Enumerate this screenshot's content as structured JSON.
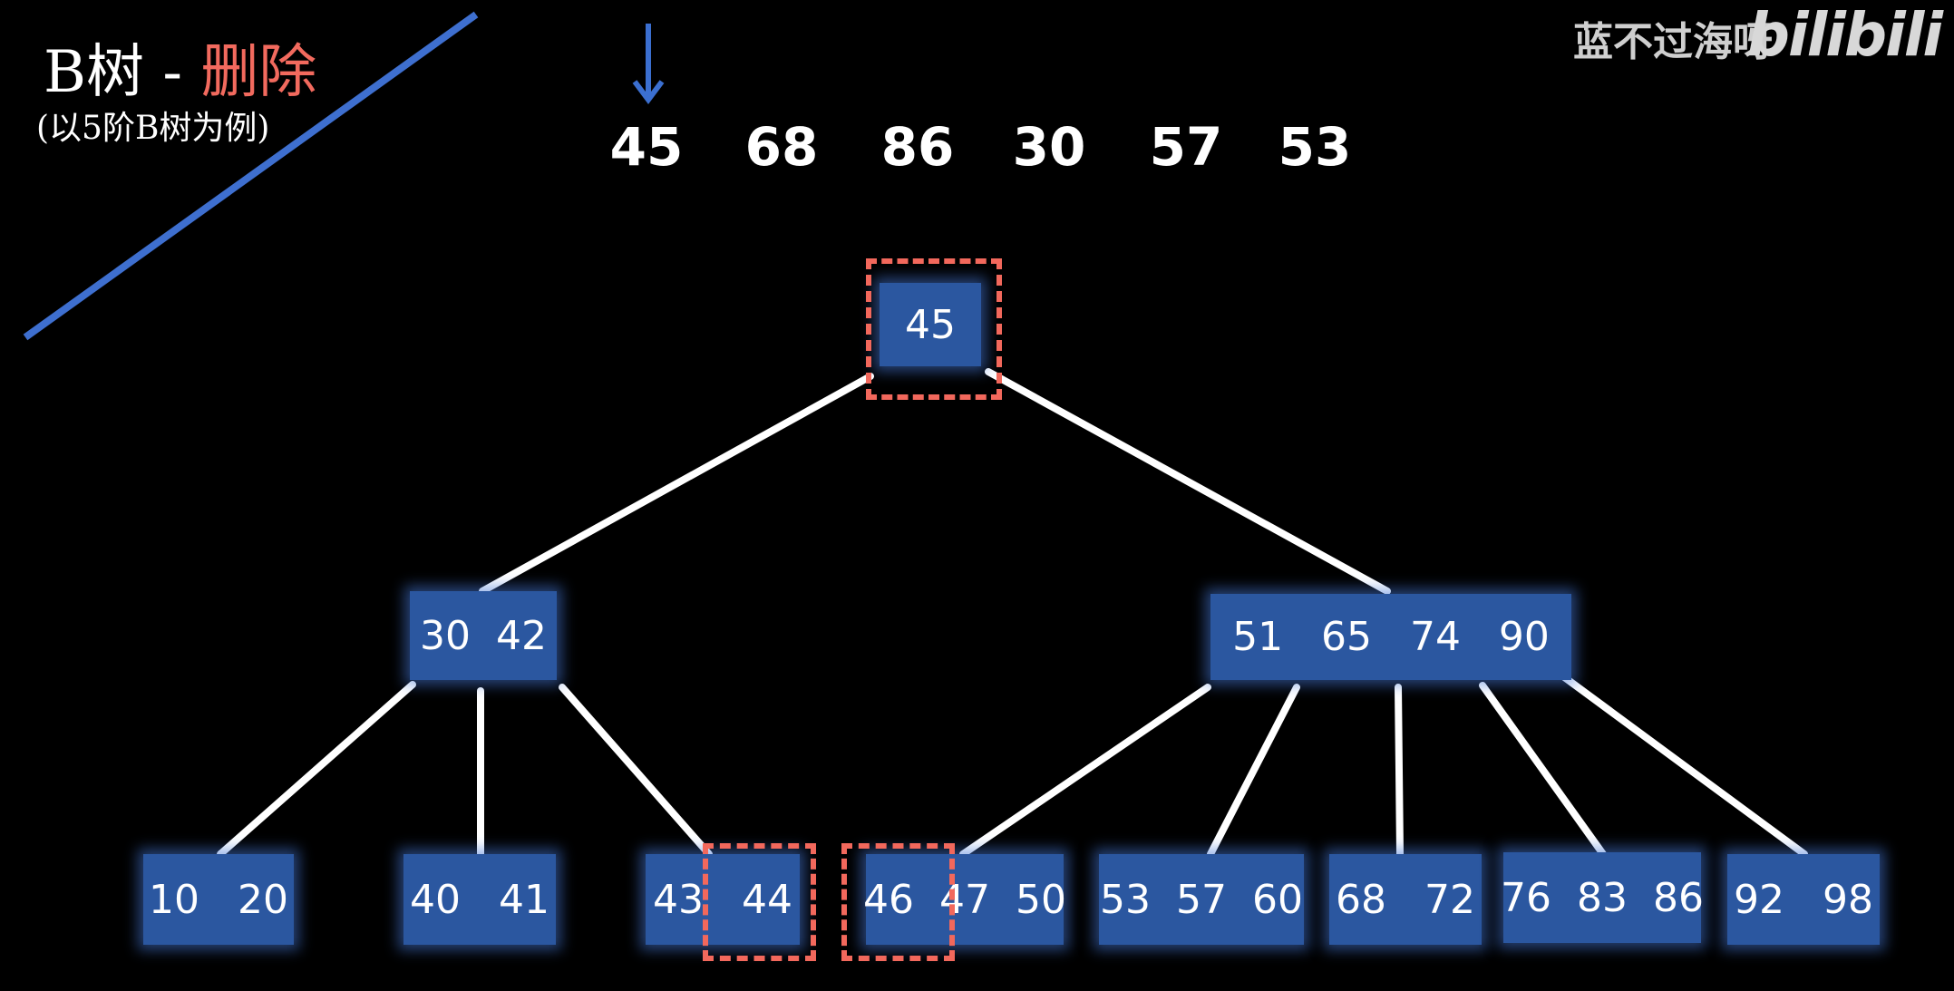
{
  "title": {
    "main": "B树 - ",
    "highlight": "删除",
    "subtitle": "(以5阶B树为例)"
  },
  "watermark": {
    "author": "蓝不过海呀",
    "logo": "bilibili"
  },
  "sequence": [
    "45",
    "68",
    "86",
    "30",
    "57",
    "53"
  ],
  "tree": {
    "root": "45",
    "level1": [
      "30  42",
      "51   65   74   90"
    ],
    "leaves": [
      "10   20",
      "40   41",
      "43   44",
      "46  47  50",
      "53  57  60",
      "68   72",
      "76  83  86",
      "92   98"
    ]
  },
  "colors": {
    "node_fill": "#2b57a0",
    "highlight": "#f2685c",
    "edge": "#ffffff",
    "arrow": "#3b6fd0",
    "accent_line": "#3e6fcf",
    "title_accent": "#f26a5e"
  },
  "icons": {
    "current_pointer": "down-arrow-icon"
  }
}
